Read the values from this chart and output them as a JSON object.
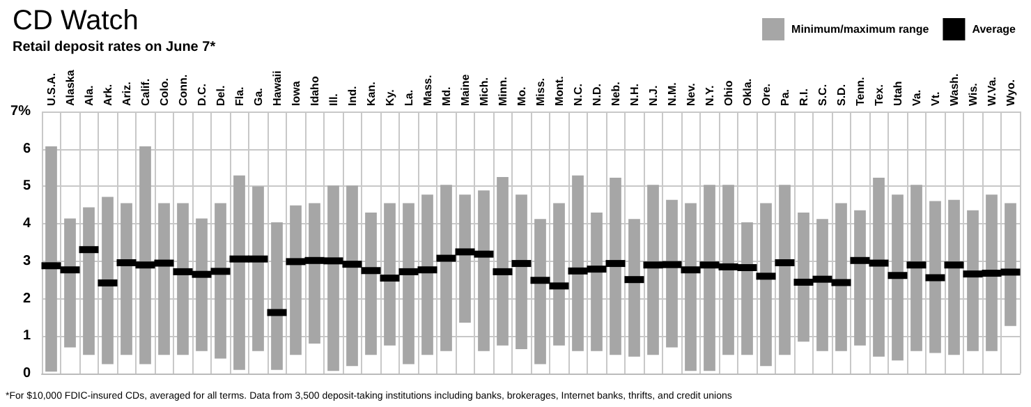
{
  "chart_data": {
    "type": "bar",
    "title": "CD Watch",
    "subtitle": "Retail deposit rates on June 7*",
    "annotations": [
      "*For $10,000 FDIC-insured CDs, averaged for all terms. Data from 3,500 deposit-taking institutions including banks, brokerages, Internet banks, thrifts, and credit unions"
    ],
    "categories": [
      "U.S.A.",
      "Alaska",
      "Ala.",
      "Ark.",
      "Ariz.",
      "Calif.",
      "Colo.",
      "Conn.",
      "D.C.",
      "Del.",
      "Fla.",
      "Ga.",
      "Hawaii",
      "Iowa",
      "Idaho",
      "Ill.",
      "Ind.",
      "Kan.",
      "Ky.",
      "La.",
      "Mass.",
      "Md.",
      "Maine",
      "Mich.",
      "Minn.",
      "Mo.",
      "Miss.",
      "Mont.",
      "N.C.",
      "N.D.",
      "Neb.",
      "N.H.",
      "N.J.",
      "N.M.",
      "Nev.",
      "N.Y.",
      "Ohio",
      "Okla.",
      "Ore.",
      "Pa.",
      "R.I.",
      "S.C.",
      "S.D.",
      "Tenn.",
      "Tex.",
      "Utah",
      "Va.",
      "Vt.",
      "Wash.",
      "Wis.",
      "W.Va.",
      "Wyo."
    ],
    "series": [
      {
        "name": "Minimum/maximum range",
        "type": "bar",
        "color": "#a6a6a6",
        "base": [
          0.05,
          0.7,
          0.5,
          0.25,
          0.5,
          0.25,
          0.5,
          0.5,
          0.6,
          0.4,
          0.1,
          0.6,
          0.1,
          0.5,
          0.8,
          0.07,
          0.2,
          0.5,
          0.75,
          0.25,
          0.5,
          0.6,
          1.36,
          0.6,
          0.75,
          0.65,
          0.25,
          0.75,
          0.6,
          0.6,
          0.5,
          0.45,
          0.5,
          0.7,
          0.07,
          0.07,
          0.5,
          0.5,
          0.2,
          0.5,
          0.85,
          0.6,
          0.6,
          0.75,
          0.45,
          0.35,
          0.6,
          0.55,
          0.5,
          0.6,
          0.6,
          1.27
        ],
        "values": [
          6.02,
          3.44,
          3.94,
          4.47,
          4.05,
          5.82,
          4.05,
          4.05,
          3.54,
          4.15,
          5.19,
          4.4,
          3.94,
          3.99,
          3.75,
          4.95,
          4.82,
          3.8,
          3.8,
          4.3,
          4.28,
          4.44,
          3.42,
          4.29,
          4.5,
          4.13,
          3.88,
          3.8,
          4.69,
          3.7,
          4.73,
          3.68,
          4.54,
          3.94,
          4.48,
          4.97,
          4.54,
          3.54,
          4.35,
          4.54,
          3.45,
          3.53,
          3.95,
          3.61,
          4.78,
          4.43,
          4.44,
          4.06,
          4.14,
          3.76,
          4.18,
          3.28
        ]
      },
      {
        "name": "Average",
        "type": "scatter",
        "marker": "square",
        "color": "#000000",
        "values": [
          2.88,
          2.77,
          3.31,
          2.42,
          2.96,
          2.9,
          2.95,
          2.72,
          2.65,
          2.73,
          3.06,
          3.06,
          1.63,
          2.99,
          3.02,
          3.01,
          2.92,
          2.75,
          2.55,
          2.72,
          2.77,
          3.08,
          3.25,
          3.19,
          2.72,
          2.94,
          2.49,
          2.34,
          2.74,
          2.79,
          2.94,
          2.51,
          2.9,
          2.91,
          2.77,
          2.9,
          2.85,
          2.83,
          2.6,
          2.96,
          2.44,
          2.52,
          2.43,
          3.02,
          2.95,
          2.62,
          2.9,
          2.56,
          2.9,
          2.66,
          2.68,
          2.71
        ]
      }
    ],
    "ylim": [
      0,
      7
    ],
    "yticks": [
      0,
      1,
      2,
      3,
      4,
      5,
      6,
      {
        "value": 7,
        "label": "7%"
      }
    ],
    "grid": true,
    "legend": "top right"
  }
}
